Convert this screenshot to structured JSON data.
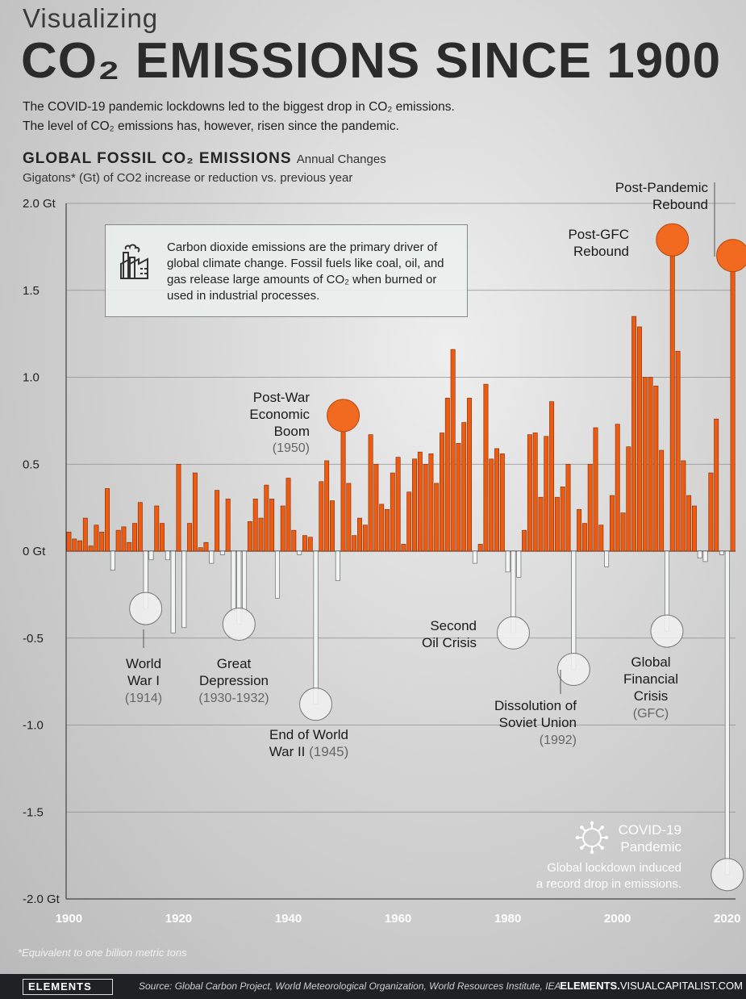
{
  "header": {
    "title_top": "Visualizing",
    "title_main": "CO₂ EMISSIONS SINCE 1900",
    "intro_line1": "The COVID-19 pandemic lockdowns led to the biggest drop in CO₂ emissions.",
    "intro_line2": "The level of CO₂ emissions has, however, risen since the pandemic."
  },
  "chart_header": {
    "title": "GLOBAL FOSSIL CO₂ EMISSIONS",
    "title_suffix": "Annual Changes",
    "subtitle": "Gigatons* (Gt) of CO2 increase or reduction vs. previous year"
  },
  "info_box": {
    "text": "Carbon dioxide emissions are the primary driver of global climate change. Fossil fuels like coal, oil, and gas release large amounts of CO₂ when burned or used in industrial processes.",
    "icon": "factory-icon"
  },
  "footnote": "*Equivalent to one billion metric tons",
  "footer": {
    "logo": "ELEMENTS",
    "source": "Source: Global Carbon Project, World Meteorological Organization, World Resources Institute, IEA",
    "site_bold": "ELEMENTS.",
    "site_rest": "VISUALCAPITALIST.COM"
  },
  "colors": {
    "positive": "#ee5a10",
    "negative": "#f2f5f3",
    "marker_positive": "#f26a1f",
    "gridline": "#8f8f8f"
  },
  "chart_data": {
    "type": "bar",
    "title": "GLOBAL FOSSIL CO₂ EMISSIONS",
    "subtitle": "Gigatons* (Gt) of CO2 increase or reduction vs. previous year",
    "xlabel": "",
    "ylabel": "",
    "ylim": [
      -2.0,
      2.0
    ],
    "y_ticks": [
      {
        "value": 2.0,
        "label": "2.0 Gt"
      },
      {
        "value": 1.5,
        "label": "1.5"
      },
      {
        "value": 1.0,
        "label": "1.0"
      },
      {
        "value": 0.5,
        "label": "0.5"
      },
      {
        "value": 0.0,
        "label": "0 Gt"
      },
      {
        "value": -0.5,
        "label": "-0.5"
      },
      {
        "value": -1.0,
        "label": "-1.0"
      },
      {
        "value": -1.5,
        "label": "-1.5"
      },
      {
        "value": -2.0,
        "label": "-2.0 Gt"
      }
    ],
    "x_ticks": [
      "1900",
      "1920",
      "1940",
      "1960",
      "1980",
      "2000",
      "2020"
    ],
    "grid": true,
    "x": [
      1900,
      1901,
      1902,
      1903,
      1904,
      1905,
      1906,
      1907,
      1908,
      1909,
      1910,
      1911,
      1912,
      1913,
      1914,
      1915,
      1916,
      1917,
      1918,
      1919,
      1920,
      1921,
      1922,
      1923,
      1924,
      1925,
      1926,
      1927,
      1928,
      1929,
      1930,
      1931,
      1932,
      1933,
      1934,
      1935,
      1936,
      1937,
      1938,
      1939,
      1940,
      1941,
      1942,
      1943,
      1944,
      1945,
      1946,
      1947,
      1948,
      1949,
      1950,
      1951,
      1952,
      1953,
      1954,
      1955,
      1956,
      1957,
      1958,
      1959,
      1960,
      1961,
      1962,
      1963,
      1964,
      1965,
      1966,
      1967,
      1968,
      1969,
      1970,
      1971,
      1972,
      1973,
      1974,
      1975,
      1976,
      1977,
      1978,
      1979,
      1980,
      1981,
      1982,
      1983,
      1984,
      1985,
      1986,
      1987,
      1988,
      1989,
      1990,
      1991,
      1992,
      1993,
      1994,
      1995,
      1996,
      1997,
      1998,
      1999,
      2000,
      2001,
      2002,
      2003,
      2004,
      2005,
      2006,
      2007,
      2008,
      2009,
      2010,
      2011,
      2012,
      2013,
      2014,
      2015,
      2016,
      2017,
      2018,
      2019,
      2020,
      2021
    ],
    "values": [
      0.11,
      0.07,
      0.06,
      0.19,
      0.03,
      0.15,
      0.11,
      0.36,
      -0.11,
      0.12,
      0.14,
      0.05,
      0.16,
      0.28,
      -0.33,
      -0.05,
      0.26,
      0.16,
      -0.05,
      -0.47,
      0.5,
      -0.44,
      0.16,
      0.45,
      0.02,
      0.05,
      -0.07,
      0.35,
      -0.02,
      0.3,
      -0.34,
      -0.42,
      -0.35,
      0.17,
      0.3,
      0.19,
      0.38,
      0.3,
      -0.27,
      0.26,
      0.42,
      0.12,
      -0.02,
      0.09,
      0.08,
      -0.88,
      0.4,
      0.52,
      0.29,
      -0.17,
      0.78,
      0.39,
      0.09,
      0.19,
      0.15,
      0.67,
      0.5,
      0.27,
      0.24,
      0.45,
      0.54,
      0.04,
      0.34,
      0.53,
      0.57,
      0.5,
      0.56,
      0.39,
      0.68,
      0.88,
      1.16,
      0.62,
      0.74,
      0.88,
      -0.07,
      0.04,
      0.96,
      0.53,
      0.59,
      0.56,
      -0.12,
      -0.47,
      -0.15,
      0.12,
      0.67,
      0.68,
      0.31,
      0.66,
      0.86,
      0.31,
      0.37,
      0.5,
      -0.68,
      0.24,
      0.16,
      0.5,
      0.71,
      0.15,
      -0.09,
      0.32,
      0.73,
      0.22,
      0.6,
      1.35,
      1.29,
      1.0,
      1.0,
      0.95,
      0.58,
      -0.46,
      1.79,
      1.15,
      0.52,
      0.32,
      0.26,
      -0.04,
      -0.06,
      0.45,
      0.76,
      -0.02,
      -1.86,
      1.7
    ],
    "annotations": [
      {
        "year": 1914,
        "title": "World War I",
        "sub": "(1914)"
      },
      {
        "year": 1931,
        "title": "Great Depression",
        "sub": "(1930-1932)"
      },
      {
        "year": 1945,
        "title": "End of World War II",
        "sub": "(1945)"
      },
      {
        "year": 1950,
        "title": "Post-War Economic Boom",
        "sub": "(1950)"
      },
      {
        "year": 1981,
        "title": "Second Oil Crisis",
        "sub": ""
      },
      {
        "year": 1992,
        "title": "Dissolution of Soviet Union",
        "sub": "(1992)"
      },
      {
        "year": 2009,
        "title": "Global Financial Crisis",
        "sub": "(GFC)"
      },
      {
        "year": 2010,
        "title": "Post-GFC Rebound",
        "sub": ""
      },
      {
        "year": 2020,
        "title": "COVID-19 Pandemic",
        "sub": "Global lockdown induced a record drop in emissions."
      },
      {
        "year": 2021,
        "title": "Post-Pandemic Rebound",
        "sub": ""
      }
    ]
  }
}
